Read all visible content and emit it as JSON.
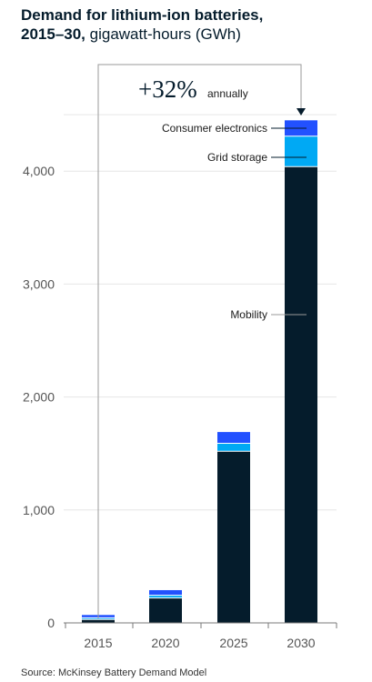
{
  "title": {
    "bold": "Demand for lithium-ion batteries,",
    "bold2": "2015–30,",
    "rest": "gigawatt-hours (GWh)"
  },
  "annotation": {
    "growth": "+32%",
    "growth_label": "annually"
  },
  "source": "Source: McKinsey Battery Demand Model",
  "chart_data": {
    "type": "bar",
    "stacked": true,
    "title": "Demand for lithium-ion batteries, 2015–30, gigawatt-hours (GWh)",
    "categories": [
      "2015",
      "2020",
      "2025",
      "2030"
    ],
    "series": [
      {
        "name": "Mobility",
        "color": "#051c2c",
        "values": [
          30,
          220,
          1520,
          4040
        ]
      },
      {
        "name": "Grid storage",
        "color": "#00a9f4",
        "values": [
          15,
          25,
          70,
          270
        ]
      },
      {
        "name": "Consumer electronics",
        "color": "#2251ff",
        "values": [
          25,
          45,
          100,
          140
        ]
      }
    ],
    "yticks": [
      0,
      1000,
      2000,
      3000,
      4000
    ],
    "ytick_labels": [
      "0",
      "1,000",
      "2,000",
      "3,000",
      "4,000"
    ],
    "ylim": [
      0,
      4700
    ],
    "grid": true,
    "xlabel": "",
    "ylabel": ""
  }
}
